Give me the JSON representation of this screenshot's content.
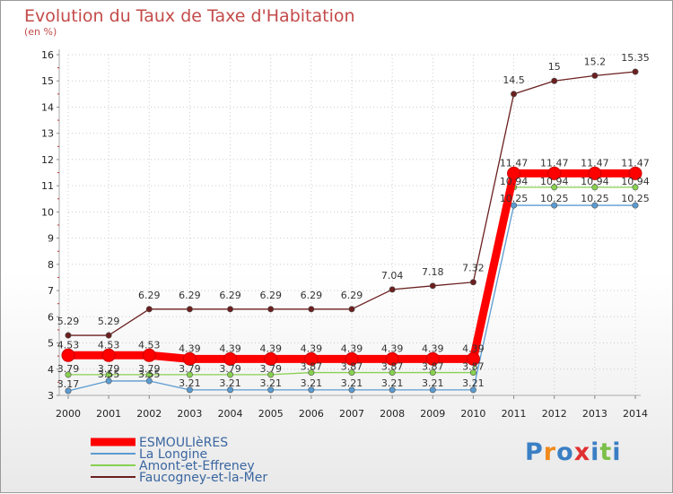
{
  "chart_data": {
    "type": "line",
    "title": "Evolution du Taux de Taxe d'Habitation",
    "subtitle": "(en %)",
    "xlabel": "",
    "ylabel": "",
    "ylim": [
      3,
      16
    ],
    "yticks": [
      "3",
      "4",
      "5",
      "6",
      "7",
      "8",
      "9",
      "10",
      "11",
      "12",
      "13",
      "14",
      "15",
      "16"
    ],
    "categories": [
      "2000",
      "2001",
      "2002",
      "2003",
      "2004",
      "2005",
      "2006",
      "2007",
      "2008",
      "2009",
      "2010",
      "2011",
      "2012",
      "2013",
      "2014"
    ],
    "legend_position": "bottom-left",
    "series": [
      {
        "name": "ESMOULIèRES",
        "color": "#ff0000",
        "values": [
          4.53,
          4.53,
          4.53,
          4.39,
          4.39,
          4.39,
          4.39,
          4.39,
          4.39,
          4.39,
          4.39,
          11.47,
          11.47,
          11.47,
          11.47
        ],
        "labels": [
          "4.53",
          "4.53",
          "4.53",
          "4.39",
          "4.39",
          "4.39",
          "4.39",
          "4.39",
          "4.39",
          "4.39",
          "4.39",
          "11.47",
          "11.47",
          "11.47",
          "11.47"
        ]
      },
      {
        "name": "La Longine",
        "color": "#5b9bd0",
        "values": [
          3.17,
          3.55,
          3.55,
          3.21,
          3.21,
          3.21,
          3.21,
          3.21,
          3.21,
          3.21,
          3.21,
          10.25,
          10.25,
          10.25,
          10.25
        ],
        "labels": [
          "3.17",
          "3.55",
          "3.55",
          "3.21",
          "3.21",
          "3.21",
          "3.21",
          "3.21",
          "3.21",
          "3.21",
          "3.21",
          "10.25",
          "10.25",
          "10.25",
          "10.25"
        ]
      },
      {
        "name": "Amont-et-Effreney",
        "color": "#88d050",
        "values": [
          3.79,
          3.79,
          3.79,
          3.79,
          3.79,
          3.79,
          3.87,
          3.87,
          3.87,
          3.87,
          3.87,
          10.94,
          10.94,
          10.94,
          10.94
        ],
        "labels": [
          "3.79",
          "3.79",
          "3.79",
          "3.79",
          "3.79",
          "3.79",
          "3.87",
          "3.87",
          "3.87",
          "3.87",
          "3.87",
          "10.94",
          "10.94",
          "10.94",
          "10.94"
        ]
      },
      {
        "name": "Faucogney-et-la-Mer",
        "color": "#6b1f1f",
        "values": [
          5.29,
          5.29,
          6.29,
          6.29,
          6.29,
          6.29,
          6.29,
          6.29,
          7.04,
          7.18,
          7.32,
          14.5,
          15,
          15.2,
          15.35
        ],
        "labels": [
          "5.29",
          "5.29",
          "6.29",
          "6.29",
          "6.29",
          "6.29",
          "6.29",
          "6.29",
          "7.04",
          "7.18",
          "7.32",
          "14.5",
          "15",
          "15.2",
          "15.35"
        ]
      }
    ]
  },
  "logo": {
    "text": "Proxiti",
    "letters": [
      "P",
      "r",
      "o",
      "x",
      "i",
      "t",
      "i"
    ],
    "colors": [
      "#3b7fc4",
      "#f08a1c",
      "#3b7fc4",
      "#e03030",
      "#3b7fc4",
      "#7cc04a",
      "#3b7fc4"
    ]
  }
}
